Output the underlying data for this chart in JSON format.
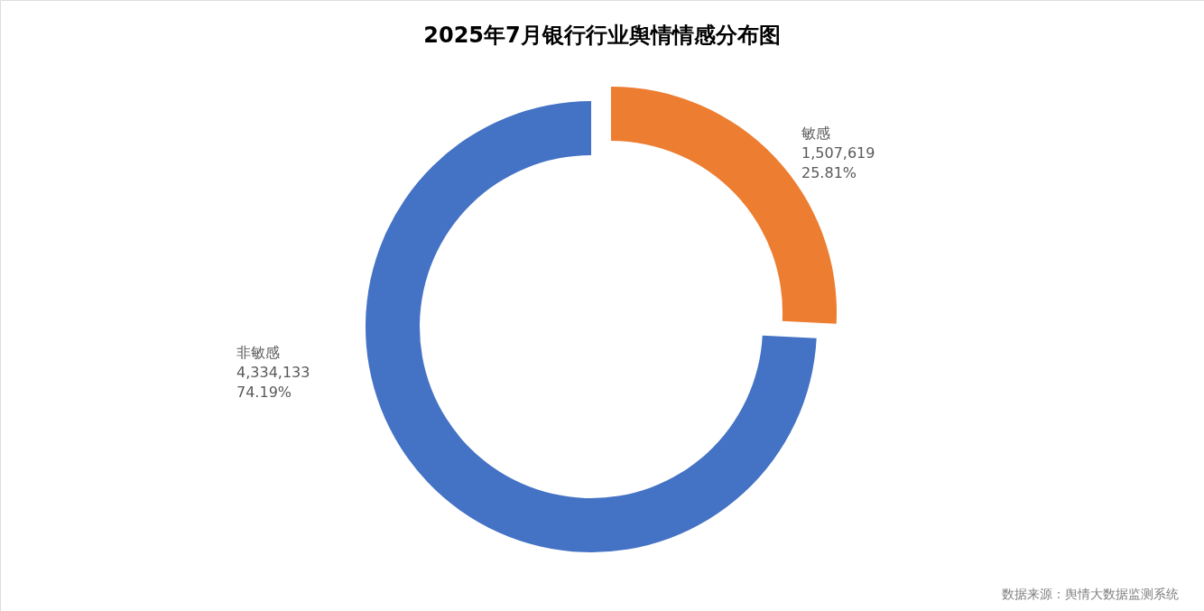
{
  "chart_data": {
    "type": "donut",
    "title": "2025年7月银行行业舆情情感分布图",
    "categories": [
      "敏感",
      "非敏感"
    ],
    "values": [
      1507619,
      4334133
    ],
    "colors": [
      "#ed7d31",
      "#4472c4"
    ],
    "value_labels": [
      "1,507,619\n25.81%",
      "4,334,133\n74.19%"
    ],
    "annotations": [
      "数据来源：舆情大数据监测系统"
    ]
  }
}
